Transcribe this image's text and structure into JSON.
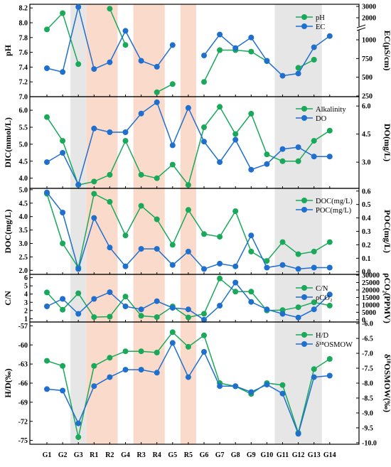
{
  "chart_data": {
    "type": "line",
    "categories": [
      "G1",
      "G2",
      "G3",
      "R1",
      "R2",
      "G4",
      "R3",
      "R4",
      "G5",
      "R5",
      "G6",
      "G7",
      "G8",
      "G9",
      "G10",
      "G11",
      "G12",
      "G13",
      "G14"
    ],
    "shading": {
      "grey": [
        [
          "G3",
          "G3"
        ],
        [
          "G11",
          "G13"
        ]
      ],
      "orange": [
        [
          "R1",
          "R2"
        ],
        [
          "R3",
          "R4"
        ],
        [
          "R5",
          "R5"
        ]
      ]
    },
    "colors": {
      "green": "#1aa85a",
      "blue": "#1f6fcf",
      "grey_band": "#e6e6e6",
      "orange_band": "#fadbcb"
    },
    "panels": [
      {
        "left_label": "pH",
        "right_label": "EC(μS/cm)",
        "left_ticks": [
          "7.0",
          "7.2",
          "7.4",
          "7.6",
          "7.8",
          "8.0",
          "8.2"
        ],
        "right_ticks_low": [
          "250",
          "500",
          "750",
          "1000"
        ],
        "right_ticks_high": [
          "2000",
          "3000"
        ],
        "right_axis_break": true,
        "legend": [
          "pH",
          "EC"
        ],
        "series": [
          {
            "name": "pH",
            "color": "green",
            "values": [
              7.91,
              8.13,
              7.44,
              null,
              8.19,
              7.7,
              null,
              7.06,
              7.17,
              null,
              7.2,
              7.63,
              7.63,
              7.61,
              7.48,
              null,
              7.39,
              7.5,
              null
            ],
            "x": [
              0,
              1,
              2,
              null,
              4,
              5,
              null,
              7,
              8,
              null,
              10,
              11,
              12,
              13,
              14,
              null,
              16,
              17,
              null
            ]
          },
          {
            "name": "EC",
            "color": "blue",
            "values": [
              620,
              570,
              2950,
              610,
              700,
              1120,
              720,
              640,
              930,
              null,
              790,
              1070,
              890,
              1030,
              720,
              520,
              550,
              900,
              1050
            ]
          }
        ]
      },
      {
        "left_label": "DIC(mmol/L)",
        "right_label": "DO(mg/L)",
        "left_ticks": [
          "4.0",
          "4.5",
          "5.0",
          "5.5",
          "6.0"
        ],
        "right_ticks": [
          "3.0",
          "4.5",
          "6.0"
        ],
        "legend": [
          "Alkalinity",
          "DO"
        ],
        "series": [
          {
            "name": "Alkalinity",
            "color": "green",
            "values": [
              5.8,
              5.1,
              3.8,
              3.9,
              4.1,
              5.1,
              4.1,
              4.0,
              4.4,
              3.8,
              5.5,
              6.1,
              5.3,
              5.9,
              4.7,
              4.5,
              4.5,
              5.1,
              5.4
            ]
          },
          {
            "name": "DO",
            "color": "blue",
            "values": [
              3.0,
              3.5,
              1.8,
              4.8,
              4.6,
              4.6,
              5.6,
              6.2,
              3.9,
              5.9,
              4.1,
              3.0,
              4.2,
              2.6,
              2.9,
              3.7,
              3.8,
              3.3,
              3.3
            ]
          }
        ]
      },
      {
        "left_label": "DOC(mg/L)",
        "right_label": "POC(mg/L)",
        "left_ticks": [
          "2.0",
          "2.5",
          "3.0",
          "3.5",
          "4.0",
          "4.5",
          "5.0"
        ],
        "right_ticks": [
          "0.0",
          "0.1",
          "0.2",
          "0.3",
          "0.4",
          "0.5",
          "0.6"
        ],
        "legend": [
          "DOC(mg/L)",
          "POC(mg/L)"
        ],
        "series": [
          {
            "name": "DOC(mg/L)",
            "color": "green",
            "values": [
              4.85,
              3.0,
              2.1,
              4.85,
              4.55,
              3.3,
              4.4,
              3.9,
              2.95,
              4.25,
              3.35,
              3.25,
              4.2,
              2.7,
              2.35,
              3.05,
              2.6,
              2.7,
              3.05
            ]
          },
          {
            "name": "POC(mg/L)",
            "color": "blue",
            "values": [
              0.59,
              0.44,
              0.02,
              0.4,
              0.18,
              0.04,
              0.17,
              0.17,
              0.05,
              0.15,
              0.02,
              0.06,
              0.04,
              0.27,
              0.03,
              0.05,
              0.02,
              0.03,
              0.03
            ]
          }
        ]
      },
      {
        "left_label": "C/N",
        "right_label": "ρCO₂(PPMV)",
        "left_ticks": [
          "1",
          "2",
          "3",
          "4",
          "5",
          "6"
        ],
        "right_ticks": [
          "0",
          "5000",
          "10000",
          "15000",
          "20000",
          "25000",
          "30000"
        ],
        "legend": [
          "C/N",
          "ρCO₂"
        ],
        "series": [
          {
            "name": "C/N",
            "color": "green",
            "values": [
              4.2,
              2.1,
              4.1,
              1.2,
              1.25,
              3.7,
              1.35,
              1.2,
              2.5,
              1.15,
              1.6,
              5.9,
              4.3,
              4.3,
              2.0,
              2.05,
              2.4,
              3.0,
              2.6
            ]
          },
          {
            "name": "ρCO₂",
            "color": "blue",
            "values": [
              9000,
              14000,
              4000,
              14000,
              18500,
              9000,
              7000,
              12500,
              8000,
              7000,
              0,
              9500,
              25000,
              12000,
              7000,
              4000,
              1500,
              7000,
              17000
            ]
          }
        ]
      },
      {
        "left_label": "H/D(‰)",
        "right_label": "δ¹⁸OSMOW(‰)",
        "left_ticks": [
          "-75",
          "-72",
          "-69",
          "-66",
          "-63",
          "-60",
          "-57"
        ],
        "right_ticks": [
          "-10.0",
          "-9.5",
          "-9.0",
          "-8.5",
          "-8.0",
          "-7.5",
          "-7.0",
          "-6.5",
          "-6.0"
        ],
        "legend": [
          "H/D",
          "δ¹⁸OSMOW"
        ],
        "series": [
          {
            "name": "H/D",
            "color": "green",
            "values": [
              -62.5,
              -63.3,
              -74.5,
              -63.3,
              -62.0,
              -61.0,
              -61.0,
              -61.2,
              -58.0,
              -60.3,
              -58.5,
              -66.0,
              -66.5,
              -67.7,
              -66.0,
              -66.3,
              -73.8,
              -63.8,
              -62.2
            ]
          },
          {
            "name": "δ¹⁸OSMOW",
            "color": "blue",
            "values": [
              -8.2,
              -8.25,
              -9.35,
              -8.1,
              -7.8,
              -7.55,
              -7.55,
              -7.65,
              -6.65,
              -7.8,
              -6.95,
              -8.1,
              -8.1,
              -8.3,
              -8.05,
              -8.35,
              -9.7,
              -7.8,
              -7.75
            ]
          }
        ]
      }
    ]
  }
}
